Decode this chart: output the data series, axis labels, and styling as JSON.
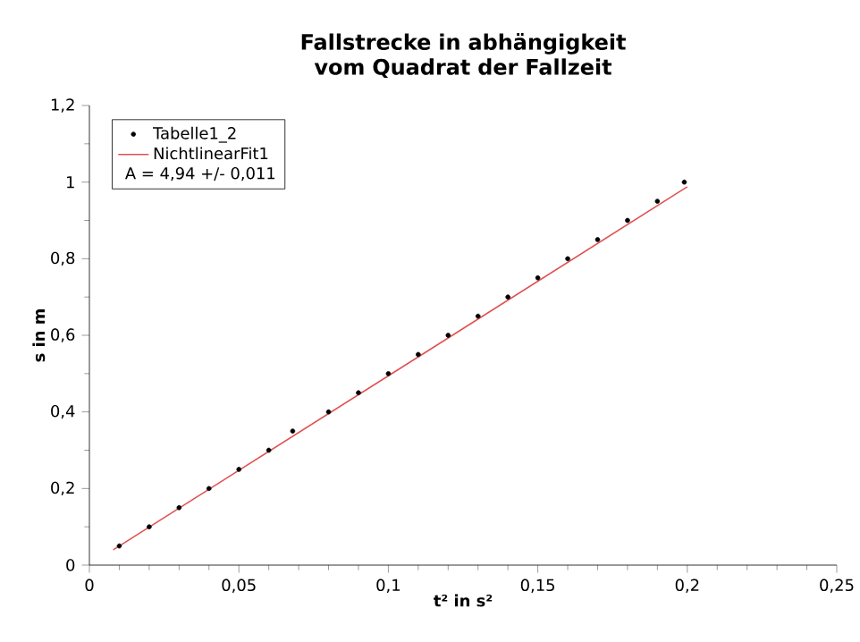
{
  "chart_data": {
    "type": "scatter",
    "title": "Fallstrecke in abhängigkeit vom Quadrat der Fallzeit",
    "xlabel": "t²  in s²",
    "ylabel": "s in m",
    "annotations": [
      "A = 4,94 +/- 0,011"
    ],
    "series": [
      {
        "name": "Tabelle1_2",
        "color": "#000000",
        "marker": "circle",
        "x": [
          0.01,
          0.02,
          0.03,
          0.04,
          0.05,
          0.06,
          0.068,
          0.08,
          0.09,
          0.1,
          0.11,
          0.12,
          0.13,
          0.14,
          0.15,
          0.16,
          0.17,
          0.18,
          0.19,
          0.199
        ],
        "values": [
          0.05,
          0.1,
          0.15,
          0.2,
          0.25,
          0.3,
          0.35,
          0.4,
          0.45,
          0.5,
          0.55,
          0.6,
          0.65,
          0.7,
          0.75,
          0.8,
          0.85,
          0.9,
          0.95,
          1.0
        ]
      },
      {
        "name": "NichtlinearFit1",
        "type": "line",
        "color": "#e05050",
        "marker": "none",
        "x": [
          0.008,
          0.2
        ],
        "values": [
          0.04,
          0.988
        ]
      }
    ],
    "xlim": [
      0,
      0.25
    ],
    "ylim": [
      0,
      1.2
    ],
    "xticks": [
      0,
      {
        "value": 0.05,
        "label": "0,05"
      },
      {
        "value": 0.1,
        "label": "0,1"
      },
      {
        "value": 0.15,
        "label": "0,15"
      },
      {
        "value": 0.2,
        "label": "0,2"
      },
      {
        "value": 0.25,
        "label": "0,25"
      }
    ],
    "yticks": [
      0,
      {
        "value": 0.2,
        "label": "0,2"
      },
      {
        "value": 0.4,
        "label": "0,4"
      },
      {
        "value": 0.6,
        "label": "0,6"
      },
      {
        "value": 0.8,
        "label": "0,8"
      },
      1,
      {
        "value": 1.2,
        "label": "1,2"
      }
    ],
    "grid": false,
    "legend": "top left"
  }
}
